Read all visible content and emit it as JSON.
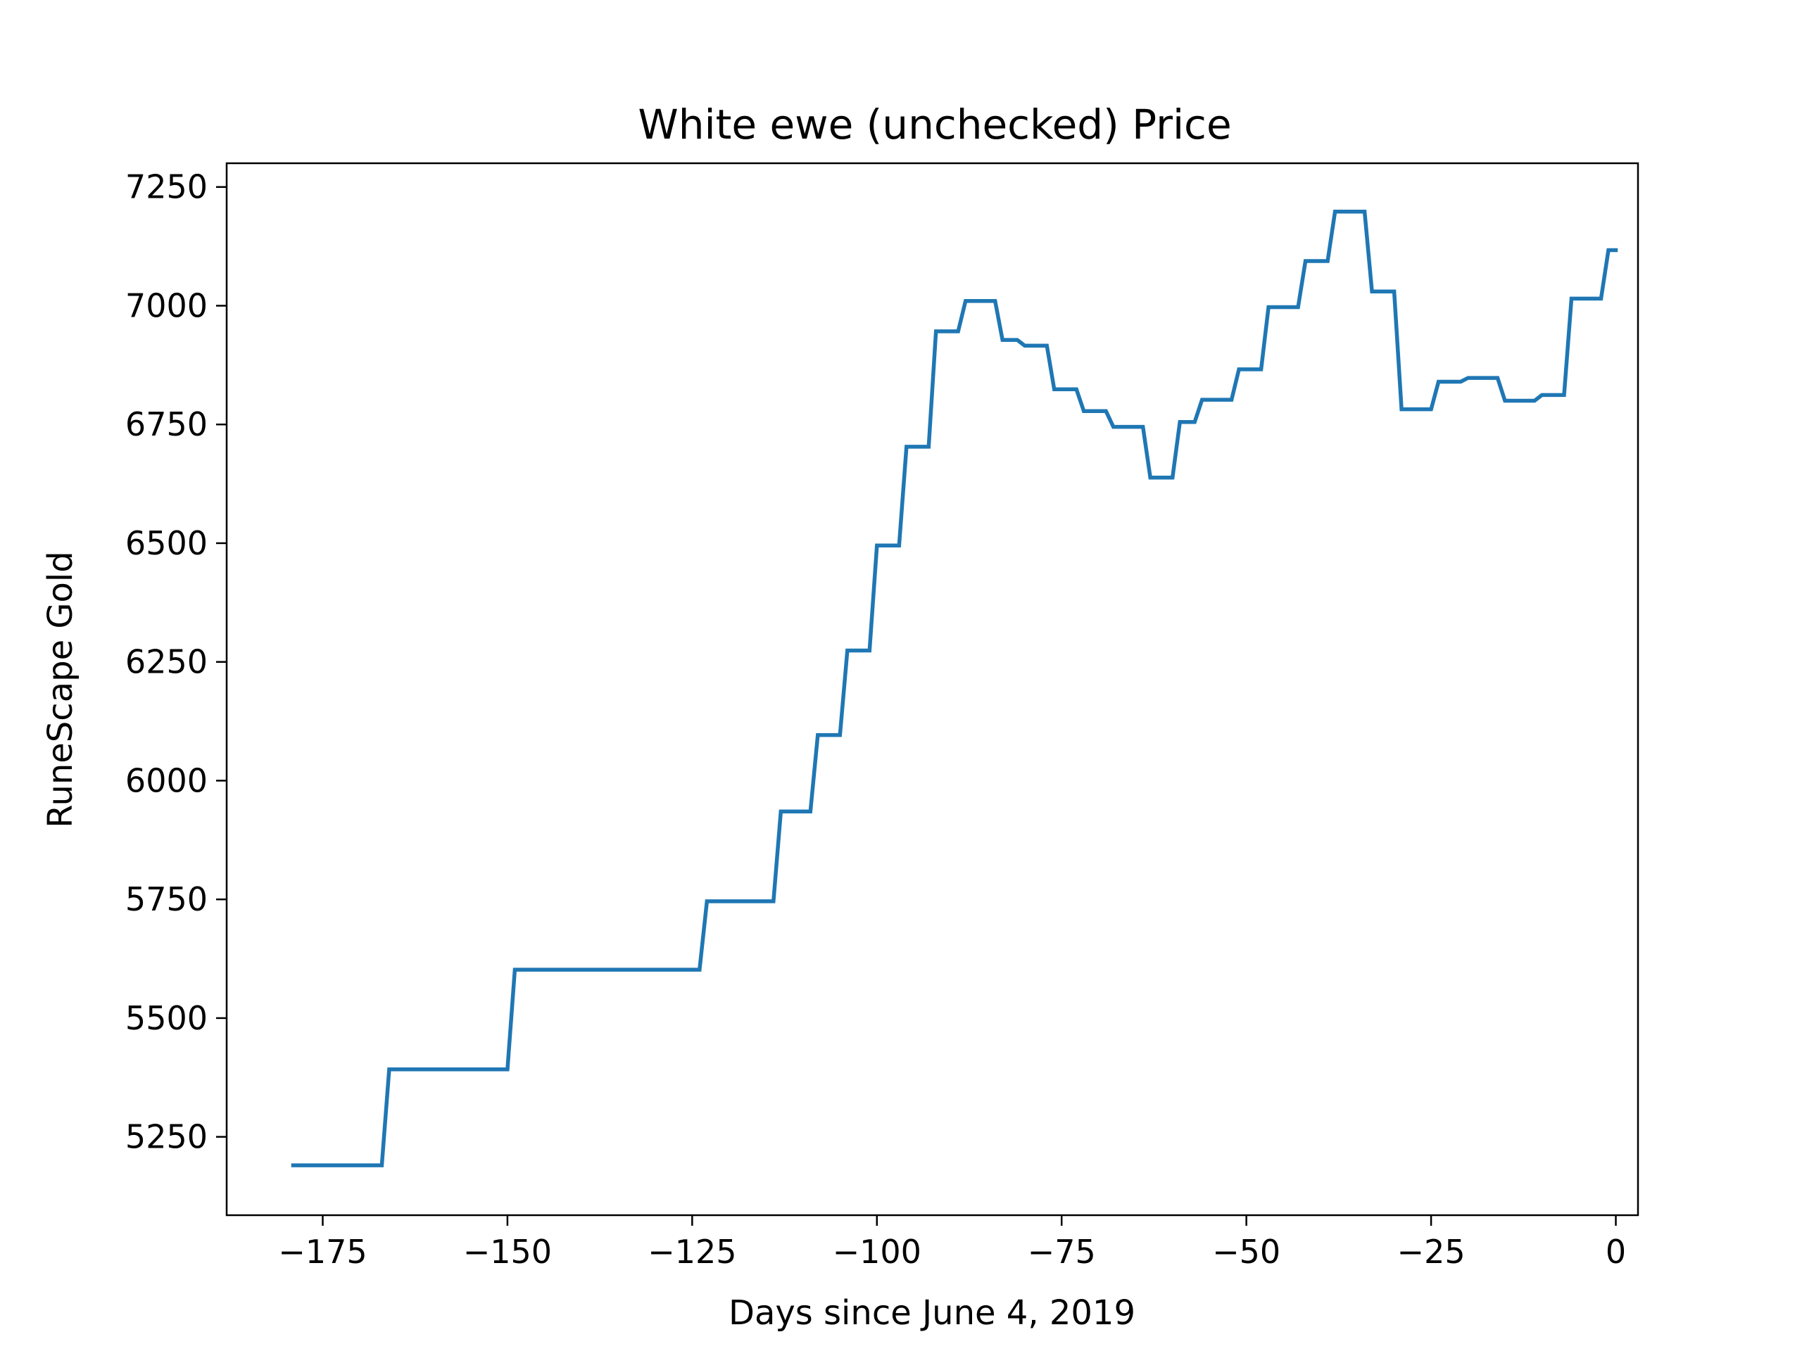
{
  "chart_data": {
    "type": "line",
    "title": "White ewe (unchecked) Price",
    "xlabel": "Days since June 4, 2019",
    "ylabel": "RuneScape Gold",
    "xlim": [
      -188,
      3
    ],
    "ylim": [
      5085,
      7300
    ],
    "xticks": [
      -175,
      -150,
      -125,
      -100,
      -75,
      -50,
      -25,
      0
    ],
    "yticks": [
      5250,
      5500,
      5750,
      6000,
      6250,
      6500,
      6750,
      7000,
      7250
    ],
    "xtick_labels": [
      "−175",
      "−150",
      "−125",
      "−100",
      "−75",
      "−50",
      "−25",
      "0"
    ],
    "ytick_labels": [
      "5250",
      "5500",
      "5750",
      "6000",
      "6250",
      "6500",
      "6750",
      "7000",
      "7250"
    ],
    "grid": false,
    "legend": "none",
    "series": [
      {
        "color": "#1f77b4",
        "x": [
          -179,
          -167,
          -166,
          -150,
          -149,
          -124,
          -123,
          -114,
          -113,
          -109,
          -108,
          -105,
          -104,
          -101,
          -100,
          -97,
          -96,
          -93,
          -92,
          -89,
          -88,
          -84,
          -83,
          -81,
          -80,
          -77,
          -76,
          -73,
          -72,
          -69,
          -68,
          -64,
          -63,
          -60,
          -59,
          -57,
          -56,
          -52,
          -51,
          -48,
          -47,
          -43,
          -42,
          -39,
          -38,
          -34,
          -33,
          -30,
          -29,
          -25,
          -24,
          -21,
          -20,
          -16,
          -15,
          -11,
          -10,
          -7,
          -6,
          -2,
          -1,
          0
        ],
        "y": [
          5190,
          5190,
          5392,
          5392,
          5602,
          5602,
          5746,
          5746,
          5935,
          5935,
          6096,
          6096,
          6274,
          6274,
          6495,
          6495,
          6703,
          6703,
          6946,
          6946,
          7010,
          7010,
          6928,
          6928,
          6916,
          6916,
          6824,
          6824,
          6778,
          6778,
          6745,
          6745,
          6638,
          6638,
          6755,
          6755,
          6802,
          6802,
          6866,
          6866,
          6997,
          6997,
          7094,
          7094,
          7198,
          7198,
          7030,
          7030,
          6782,
          6782,
          6840,
          6840,
          6848,
          6848,
          6800,
          6800,
          6812,
          6812,
          7015,
          7015,
          7117,
          7117
        ]
      }
    ]
  }
}
